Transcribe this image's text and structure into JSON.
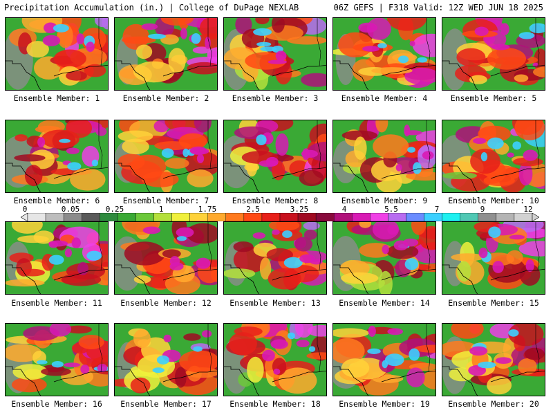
{
  "header": {
    "title_left": "Precipitation Accumulation (in.) | College of DuPage NEXLAB",
    "title_right": "06Z GEFS | F318 Valid: 12Z WED JUN 18 2025"
  },
  "panels": [
    {
      "label": "Ensemble Member: 1"
    },
    {
      "label": "Ensemble Member: 2"
    },
    {
      "label": "Ensemble Member: 3"
    },
    {
      "label": "Ensemble Member: 4"
    },
    {
      "label": "Ensemble Member: 5"
    },
    {
      "label": "Ensemble Member: 6"
    },
    {
      "label": "Ensemble Member: 7"
    },
    {
      "label": "Ensemble Member: 8"
    },
    {
      "label": "Ensemble Member: 9"
    },
    {
      "label": "Ensemble Member: 10"
    },
    {
      "label": "Ensemble Member: 11"
    },
    {
      "label": "Ensemble Member: 12"
    },
    {
      "label": "Ensemble Member: 13"
    },
    {
      "label": "Ensemble Member: 14"
    },
    {
      "label": "Ensemble Member: 15"
    },
    {
      "label": "Ensemble Member: 16"
    },
    {
      "label": "Ensemble Member: 17"
    },
    {
      "label": "Ensemble Member: 18"
    },
    {
      "label": "Ensemble Member: 19"
    },
    {
      "label": "Ensemble Member: 20"
    }
  ],
  "colorbar": {
    "labels": [
      "0",
      "0.05",
      "0.25",
      "1",
      "1.75",
      "2.5",
      "3.25",
      "4",
      "5.5",
      "7",
      "9",
      "12"
    ],
    "colors": [
      "#e6e6e6",
      "#bdbdbd",
      "#8c8c8c",
      "#5a5a5a",
      "#2e8b3e",
      "#3aa935",
      "#6cc83a",
      "#b4e03c",
      "#f0f03c",
      "#ffd23a",
      "#ffaa2e",
      "#ff7a1e",
      "#ff4a14",
      "#e8201a",
      "#c8101e",
      "#a00a22",
      "#880a3c",
      "#b0107a",
      "#d81ab4",
      "#f040e6",
      "#b86cf0",
      "#6a8cff",
      "#3cd0ff",
      "#1ef0f0",
      "#50c8b4",
      "#909090",
      "#b4b4b4",
      "#d2d2d2"
    ]
  }
}
